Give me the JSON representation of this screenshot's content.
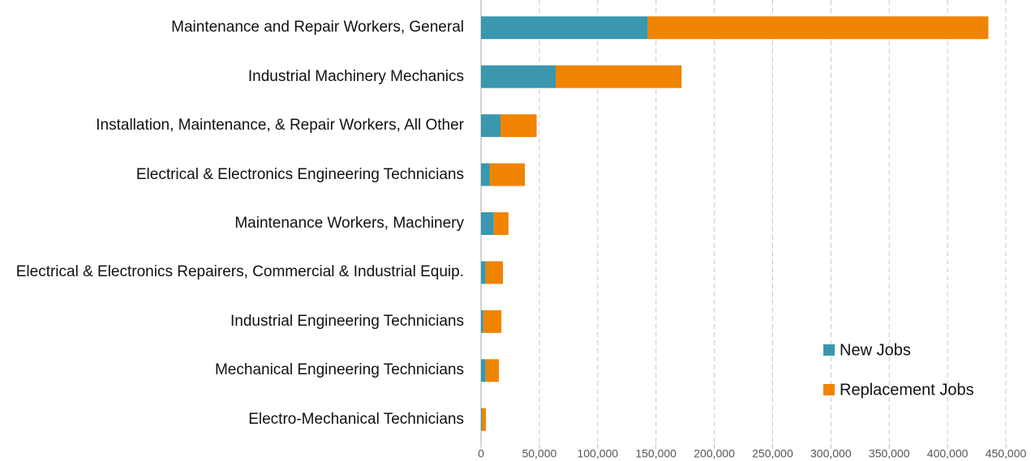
{
  "chart_data": {
    "type": "bar",
    "orientation": "horizontal",
    "stacked": true,
    "categories": [
      "Maintenance and Repair Workers, General",
      "Industrial Machinery Mechanics",
      "Installation, Maintenance, & Repair Workers, All Other",
      "Electrical & Electronics Engineering Technicians",
      "Maintenance Workers, Machinery",
      "Electrical & Electronics Repairers, Commercial & Industrial Equip.",
      "Industrial Engineering Technicians",
      "Mechanical Engineering Technicians",
      "Electro-Mechanical Technicians"
    ],
    "series": [
      {
        "name": "New Jobs",
        "color": "#3a97ad",
        "values": [
          143000,
          64000,
          16700,
          7600,
          11000,
          4000,
          2000,
          4000,
          700
        ]
      },
      {
        "name": "Replacement Jobs",
        "color": "#f08400",
        "values": [
          292000,
          108000,
          31000,
          30000,
          12500,
          14800,
          15500,
          11300,
          3500
        ]
      }
    ],
    "xlim": [
      0,
      450000
    ],
    "xticks": [
      0,
      {
        "value": 50000,
        "label": "50,000"
      },
      {
        "value": 100000,
        "label": "100,000"
      },
      {
        "value": 150000,
        "label": "150,000"
      },
      {
        "value": 200000,
        "label": "200,000"
      },
      {
        "value": 250000,
        "label": "250,000"
      },
      {
        "value": 300000,
        "label": "300,000"
      },
      {
        "value": 350000,
        "label": "350,000"
      },
      {
        "value": 400000,
        "label": "400,000"
      },
      {
        "value": 450000,
        "label": "450,000"
      }
    ],
    "grid": true,
    "legend": "lower right"
  }
}
